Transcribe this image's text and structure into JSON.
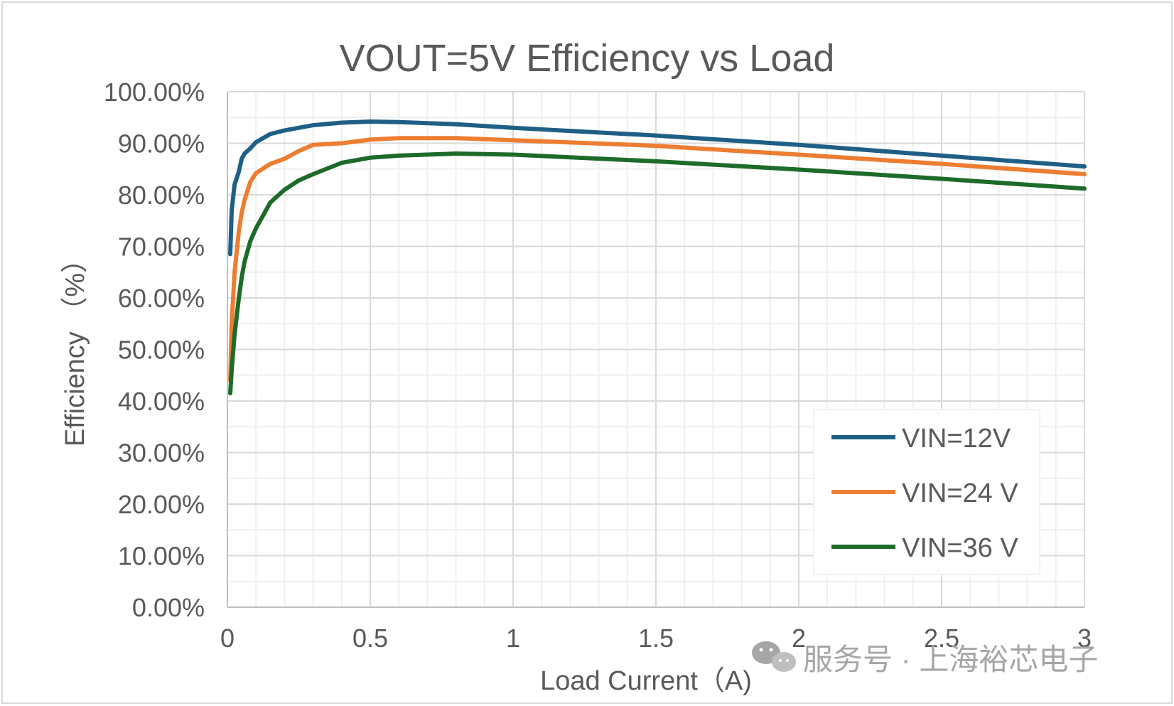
{
  "chart_data": {
    "type": "line",
    "title": "VOUT=5V Efficiency vs Load",
    "xlabel": "Load Current（A)",
    "ylabel": "Efficiency （%）",
    "xlim": [
      0,
      3
    ],
    "ylim": [
      0,
      100
    ],
    "x_ticks": [
      "0",
      "0.5",
      "1",
      "1.5",
      "2",
      "2.5",
      "3"
    ],
    "y_ticks": [
      "0.00%",
      "10.00%",
      "20.00%",
      "30.00%",
      "40.00%",
      "50.00%",
      "60.00%",
      "70.00%",
      "80.00%",
      "90.00%",
      "100.00%"
    ],
    "grid": true,
    "legend_position": "bottom-right",
    "series": [
      {
        "name": "VIN=12V",
        "color": "#1f5f86",
        "x": [
          0.01,
          0.015,
          0.025,
          0.04,
          0.05,
          0.06,
          0.08,
          0.1,
          0.15,
          0.2,
          0.3,
          0.4,
          0.5,
          0.6,
          0.8,
          1.0,
          1.5,
          2.0,
          2.5,
          3.0
        ],
        "y": [
          68.5,
          77.0,
          82.0,
          84.5,
          87.0,
          88.0,
          89.0,
          90.2,
          91.8,
          92.5,
          93.5,
          94.0,
          94.2,
          94.1,
          93.7,
          93.0,
          91.5,
          89.7,
          87.6,
          85.5
        ]
      },
      {
        "name": "VIN=24 V",
        "color": "#ed7d31",
        "x": [
          0.01,
          0.015,
          0.025,
          0.04,
          0.05,
          0.06,
          0.08,
          0.1,
          0.15,
          0.2,
          0.25,
          0.3,
          0.4,
          0.5,
          0.6,
          0.8,
          1.0,
          1.5,
          2.0,
          2.5,
          3.0
        ],
        "y": [
          44.0,
          55.0,
          65.0,
          73.0,
          76.5,
          79.0,
          82.5,
          84.2,
          86.0,
          87.0,
          88.5,
          89.7,
          90.0,
          90.7,
          91.0,
          91.0,
          90.6,
          89.5,
          87.8,
          86.0,
          84.0
        ]
      },
      {
        "name": "VIN=36 V",
        "color": "#1e6b29",
        "x": [
          0.01,
          0.015,
          0.025,
          0.04,
          0.05,
          0.06,
          0.08,
          0.1,
          0.15,
          0.2,
          0.25,
          0.3,
          0.4,
          0.5,
          0.6,
          0.8,
          1.0,
          1.5,
          2.0,
          2.5,
          3.0
        ],
        "y": [
          41.5,
          46.0,
          53.0,
          60.0,
          64.0,
          67.0,
          71.0,
          73.5,
          78.5,
          81.0,
          82.8,
          84.0,
          86.2,
          87.2,
          87.6,
          88.0,
          87.8,
          86.5,
          84.9,
          83.1,
          81.2
        ]
      }
    ]
  },
  "watermark": {
    "text": "服务号 · 上海裕芯电子",
    "icon": "wechat-icon"
  }
}
